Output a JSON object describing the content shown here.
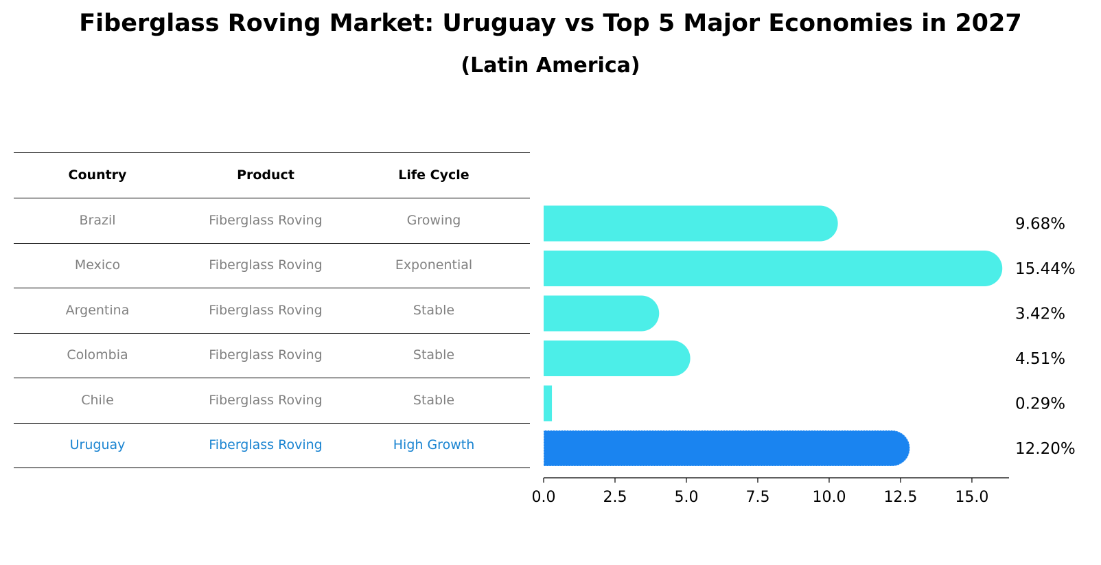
{
  "title": "Fiberglass Roving Market: Uruguay vs Top 5 Major Economies in 2027",
  "subtitle": "(Latin America)",
  "table": {
    "headers": [
      "Country",
      "Product",
      "Life Cycle"
    ],
    "rows": [
      {
        "country": "Brazil",
        "product": "Fiberglass Roving",
        "life_cycle": "Growing",
        "highlight": false
      },
      {
        "country": "Mexico",
        "product": "Fiberglass Roving",
        "life_cycle": "Exponential",
        "highlight": false
      },
      {
        "country": "Argentina",
        "product": "Fiberglass Roving",
        "life_cycle": "Stable",
        "highlight": false
      },
      {
        "country": "Colombia",
        "product": "Fiberglass Roving",
        "life_cycle": "Stable",
        "highlight": false
      },
      {
        "country": "Chile",
        "product": "Fiberglass Roving",
        "life_cycle": "Stable",
        "highlight": false
      },
      {
        "country": "Uruguay",
        "product": "Fiberglass Roving",
        "life_cycle": "High Growth",
        "highlight": true
      }
    ]
  },
  "colors": {
    "bar": "#4ceee8",
    "highlight_bar": "#1a84f0",
    "highlight_text": "#1a84d1",
    "row_text": "#808080"
  },
  "chart_data": {
    "type": "bar",
    "orientation": "horizontal",
    "categories": [
      "Brazil",
      "Mexico",
      "Argentina",
      "Colombia",
      "Chile",
      "Uruguay"
    ],
    "values": [
      9.68,
      15.44,
      3.42,
      4.51,
      0.29,
      12.2
    ],
    "value_labels": [
      "9.68%",
      "15.44%",
      "3.42%",
      "4.51%",
      "0.29%",
      "12.20%"
    ],
    "highlight_category": "Uruguay",
    "xlim": [
      0,
      16.3
    ],
    "xticks": [
      0.0,
      2.5,
      5.0,
      7.5,
      10.0,
      12.5,
      15.0
    ],
    "xtick_labels": [
      "0.0",
      "2.5",
      "5.0",
      "7.5",
      "10.0",
      "12.5",
      "15.0"
    ],
    "xlabel": "",
    "ylabel": "",
    "grid": false,
    "rounded_bar_ends": true
  }
}
